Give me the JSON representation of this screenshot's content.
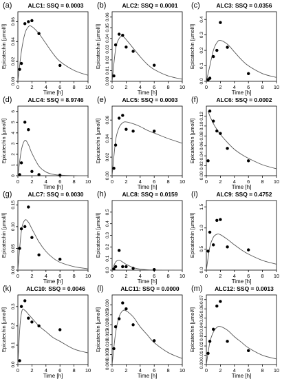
{
  "figure": {
    "xlabel": "Time [h]",
    "ylabel": "Epicatechin [µmol/l]"
  },
  "chart_data": [
    {
      "type": "scatter",
      "panel_label": "(a)",
      "title": "ALC1: SSQ = 0.0003",
      "xlabel": "Time [h]",
      "ylabel": "Epicatechin [µmol/l]",
      "xlim": [
        0,
        10
      ],
      "ylim": [
        0,
        0.07
      ],
      "xticks": [
        0,
        2,
        4,
        6,
        8,
        10
      ],
      "yticks": [
        0,
        0.02,
        0.04,
        0.06
      ],
      "ytick_labels": [
        "0.00",
        "0.02",
        "0.04",
        "0.06"
      ],
      "points": {
        "x": [
          0.25,
          0.5,
          1,
          1.5,
          2,
          3,
          6
        ],
        "y": [
          0.012,
          0.018,
          0.058,
          0.06,
          0.061,
          0.048,
          0.016
        ]
      },
      "curve": {
        "x": [
          0,
          0.5,
          1,
          1.5,
          2,
          3,
          4,
          5,
          6,
          8,
          10
        ],
        "y": [
          0,
          0.03,
          0.048,
          0.055,
          0.055,
          0.048,
          0.038,
          0.028,
          0.02,
          0.011,
          0.006
        ]
      }
    },
    {
      "type": "scatter",
      "panel_label": "(b)",
      "title": "ALC2: SSQ = 0.0001",
      "xlabel": "Time [h]",
      "ylabel": "Epicatechin [µmol/l]",
      "xlim": [
        0,
        10
      ],
      "ylim": [
        0,
        0.065
      ],
      "xticks": [
        0,
        2,
        4,
        6,
        8,
        10
      ],
      "yticks": [
        0,
        0.01,
        0.02,
        0.03,
        0.04,
        0.05,
        0.06
      ],
      "ytick_labels": [
        "0.00",
        "0.01",
        "0.02",
        "0.03",
        "0.04",
        "0.05",
        "0.06"
      ],
      "points": {
        "x": [
          0.25,
          0.5,
          1,
          1.5,
          2,
          3,
          6
        ],
        "y": [
          0.005,
          0.034,
          0.044,
          0.043,
          0.032,
          0.028,
          0.015
        ]
      },
      "curve": {
        "x": [
          0,
          0.5,
          1,
          1.5,
          2,
          3,
          4,
          5,
          6,
          8,
          10
        ],
        "y": [
          0,
          0.03,
          0.04,
          0.042,
          0.039,
          0.031,
          0.023,
          0.016,
          0.011,
          0.005,
          0.002
        ]
      }
    },
    {
      "type": "scatter",
      "panel_label": "(c)",
      "title": "ALC3: SSQ = 0.0356",
      "xlabel": "Time [h]",
      "ylabel": "Epicatechin [µmol/l]",
      "xlim": [
        0,
        10
      ],
      "ylim": [
        0,
        0.45
      ],
      "xticks": [
        0,
        2,
        4,
        6,
        8,
        10
      ],
      "yticks": [
        0,
        0.1,
        0.2,
        0.3,
        0.4
      ],
      "ytick_labels": [
        "0.0",
        "0.1",
        "0.2",
        "0.3",
        "0.4"
      ],
      "points": {
        "x": [
          0.25,
          0.5,
          1,
          1.5,
          2,
          3,
          6
        ],
        "y": [
          0.01,
          0.02,
          0.16,
          0.2,
          0.38,
          0.22,
          0.05
        ]
      },
      "curve": {
        "x": [
          0,
          0.5,
          1,
          1.5,
          2,
          3,
          4,
          5,
          6,
          8,
          10
        ],
        "y": [
          0,
          0.1,
          0.2,
          0.25,
          0.265,
          0.24,
          0.19,
          0.14,
          0.1,
          0.05,
          0.025
        ]
      }
    },
    {
      "type": "scatter",
      "panel_label": "(d)",
      "title": "ALC4: SSQ = 8.9746",
      "xlabel": "Time [h]",
      "ylabel": "Epicatechin [µmol/l]",
      "xlim": [
        0,
        10
      ],
      "ylim": [
        0,
        6.5
      ],
      "xticks": [
        0,
        2,
        4,
        6,
        8,
        10
      ],
      "yticks": [
        0,
        1,
        2,
        3,
        4,
        5,
        6
      ],
      "ytick_labels": [
        "0",
        "1",
        "2",
        "3",
        "4",
        "5",
        "6"
      ],
      "points": {
        "x": [
          0.25,
          0.5,
          1,
          1.5,
          2,
          3,
          6
        ],
        "y": [
          0.1,
          1.2,
          5.0,
          4.3,
          0.4,
          0.1,
          0.05
        ]
      },
      "curve": {
        "x": [
          0,
          0.5,
          1,
          1.5,
          2,
          3,
          4,
          5,
          6,
          8,
          10
        ],
        "y": [
          0,
          2.4,
          3.3,
          2.9,
          2.1,
          0.9,
          0.35,
          0.13,
          0.05,
          0.01,
          0
        ]
      }
    },
    {
      "type": "scatter",
      "panel_label": "(e)",
      "title": "ALC5: SSQ = 0.0003",
      "xlabel": "Time [h]",
      "ylabel": "Epicatechin [µmol/l]",
      "xlim": [
        0,
        10
      ],
      "ylim": [
        0,
        0.075
      ],
      "xticks": [
        0,
        2,
        4,
        6,
        8,
        10
      ],
      "yticks": [
        0,
        0.02,
        0.04,
        0.06
      ],
      "ytick_labels": [
        "0.00",
        "0.02",
        "0.04",
        "0.06"
      ],
      "points": {
        "x": [
          0.25,
          0.5,
          1,
          1.5,
          2,
          3,
          6
        ],
        "y": [
          0.008,
          0.033,
          0.062,
          0.065,
          0.05,
          0.048,
          0.048
        ]
      },
      "curve": {
        "x": [
          0,
          0.5,
          1,
          1.5,
          2,
          3,
          4,
          5,
          6,
          8,
          10
        ],
        "y": [
          0,
          0.038,
          0.052,
          0.057,
          0.058,
          0.056,
          0.053,
          0.049,
          0.046,
          0.04,
          0.035
        ]
      }
    },
    {
      "type": "scatter",
      "panel_label": "(f)",
      "title": "ALC6: SSQ = 0.0002",
      "xlabel": "Time [h]",
      "ylabel": "Epicatechin [µmol/l]",
      "xlim": [
        0,
        10
      ],
      "ylim": [
        0,
        0.14
      ],
      "xticks": [
        0,
        2,
        4,
        6,
        8,
        10
      ],
      "yticks": [
        0,
        0.02,
        0.04,
        0.06,
        0.08,
        0.1,
        0.12
      ],
      "ytick_labels": [
        "0.00",
        "0.02",
        "0.04",
        "0.06",
        "0.08",
        "0.10",
        "0.12"
      ],
      "points": {
        "x": [
          0.25,
          0.5,
          1,
          1.5,
          2,
          3,
          6
        ],
        "y": [
          0.03,
          0.13,
          0.11,
          0.09,
          0.085,
          0.055,
          0.03
        ]
      },
      "curve": {
        "x": [
          0.25,
          0.5,
          1,
          1.5,
          2,
          3,
          4,
          5,
          6,
          8,
          10
        ],
        "y": [
          0.13,
          0.12,
          0.105,
          0.093,
          0.083,
          0.067,
          0.053,
          0.043,
          0.035,
          0.022,
          0.014
        ]
      }
    },
    {
      "type": "scatter",
      "panel_label": "(g)",
      "title": "ALC7: SSQ = 0.0030",
      "xlabel": "Time [h]",
      "ylabel": "Epicatechin [µmol/l]",
      "xlim": [
        0,
        10
      ],
      "ylim": [
        0,
        0.16
      ],
      "xticks": [
        0,
        2,
        4,
        6,
        8,
        10
      ],
      "yticks": [
        0,
        0.05,
        0.1,
        0.15
      ],
      "ytick_labels": [
        "0.00",
        "0.05",
        "0.10",
        "0.15"
      ],
      "points": {
        "x": [
          0.25,
          0.5,
          1,
          1.5,
          2,
          3,
          6
        ],
        "y": [
          0.05,
          0.095,
          0.1,
          0.145,
          0.075,
          0.035,
          0.025
        ]
      },
      "curve": {
        "x": [
          0,
          0.5,
          1,
          1.5,
          2,
          3,
          4,
          5,
          6,
          8,
          10
        ],
        "y": [
          0,
          0.09,
          0.115,
          0.11,
          0.095,
          0.065,
          0.043,
          0.028,
          0.018,
          0.008,
          0.003
        ]
      }
    },
    {
      "type": "scatter",
      "panel_label": "(h)",
      "title": "ALC8: SSQ = 0.0159",
      "xlabel": "Time [h]",
      "ylabel": "Epicatechin [µmol/l]",
      "xlim": [
        0,
        10
      ],
      "ylim": [
        0,
        0.6
      ],
      "xticks": [
        0,
        2,
        4,
        6,
        8,
        10
      ],
      "yticks": [
        0,
        0.1,
        0.2,
        0.3,
        0.4,
        0.5
      ],
      "ytick_labels": [
        "0.0",
        "0.1",
        "0.2",
        "0.3",
        "0.4",
        "0.5"
      ],
      "points": {
        "x": [
          0.25,
          0.5,
          1,
          1.5,
          2,
          3,
          6
        ],
        "y": [
          0.01,
          0.03,
          0.17,
          0.03,
          0.03,
          0.015,
          0.005
        ]
      },
      "curve": {
        "x": [
          0,
          0.5,
          1,
          1.5,
          2,
          3,
          4,
          5,
          6,
          8,
          10
        ],
        "y": [
          0,
          0.07,
          0.085,
          0.07,
          0.05,
          0.022,
          0.009,
          0.003,
          0.001,
          0,
          0
        ]
      }
    },
    {
      "type": "scatter",
      "panel_label": "(i)",
      "title": "ALC9: SSQ = 0.4752",
      "xlabel": "Time [h]",
      "ylabel": "Epicatechin [µmol/l]",
      "xlim": [
        0,
        10
      ],
      "ylim": [
        0,
        1.65
      ],
      "xticks": [
        0,
        2,
        4,
        6,
        8,
        10
      ],
      "yticks": [
        0,
        0.5,
        1,
        1.5
      ],
      "ytick_labels": [
        "0.0",
        "0.5",
        "1.0",
        "1.5"
      ],
      "points": {
        "x": [
          0.25,
          0.5,
          1,
          1.5,
          2,
          3,
          6
        ],
        "y": [
          0.45,
          0.9,
          0.6,
          1.18,
          1.2,
          0.55,
          0.48
        ]
      },
      "curve": {
        "x": [
          0,
          0.5,
          1,
          1.5,
          2,
          3,
          4,
          5,
          6,
          8,
          10
        ],
        "y": [
          0,
          0.55,
          0.78,
          0.85,
          0.84,
          0.73,
          0.6,
          0.48,
          0.38,
          0.23,
          0.14
        ]
      }
    },
    {
      "type": "scatter",
      "panel_label": "(k)",
      "title": "ALC10: SSQ = 0.0046",
      "xlabel": "Time [h]",
      "ylabel": "Epicatechin [µmol/l]",
      "xlim": [
        0,
        10
      ],
      "ylim": [
        0,
        0.36
      ],
      "xticks": [
        0,
        2,
        4,
        6,
        8,
        10
      ],
      "yticks": [
        0,
        0.1,
        0.2,
        0.3
      ],
      "ytick_labels": [
        "0.0",
        "0.1",
        "0.2",
        "0.3"
      ],
      "points": {
        "x": [
          0.25,
          0.5,
          1,
          1.5,
          2,
          3,
          6
        ],
        "y": [
          0.02,
          0.3,
          0.33,
          0.24,
          0.22,
          0.2,
          0.18
        ]
      },
      "curve": {
        "x": [
          0,
          0.3,
          0.6,
          1,
          1.5,
          2,
          3,
          4,
          5,
          6,
          8,
          10
        ],
        "y": [
          0,
          0.2,
          0.28,
          0.28,
          0.26,
          0.24,
          0.2,
          0.17,
          0.14,
          0.12,
          0.08,
          0.06
        ]
      }
    },
    {
      "type": "scatter",
      "panel_label": "(l)",
      "title": "ALC11: SSQ = 0.0000",
      "xlabel": "Time [h]",
      "ylabel": "Epicatechin [µmol/l]",
      "xlim": [
        0,
        10
      ],
      "ylim": [
        0,
        0.035
      ],
      "xticks": [
        0,
        2,
        4,
        6,
        8,
        10
      ],
      "yticks": [
        0,
        0.005,
        0.01,
        0.015,
        0.02,
        0.025,
        0.03
      ],
      "ytick_labels": [
        "0.000",
        "0.005",
        "0.010",
        "0.015",
        "0.020",
        "0.025",
        "0.030"
      ],
      "points": {
        "x": [
          0.25,
          0.5,
          1,
          1.5,
          2,
          3,
          6
        ],
        "y": [
          0.008,
          0.019,
          0.023,
          0.031,
          0.028,
          0.02,
          0.012
        ]
      },
      "curve": {
        "x": [
          0,
          0.5,
          1,
          1.5,
          2,
          3,
          4,
          5,
          6,
          8,
          10
        ],
        "y": [
          0,
          0.016,
          0.024,
          0.027,
          0.027,
          0.024,
          0.019,
          0.015,
          0.011,
          0.006,
          0.003
        ]
      }
    },
    {
      "type": "scatter",
      "panel_label": "(m)",
      "title": "ALC12: SSQ = 0.0013",
      "xlabel": "Time [h]",
      "ylabel": "Epicatechin [µmol/l]",
      "xlim": [
        0,
        10
      ],
      "ylim": [
        0,
        0.075
      ],
      "xticks": [
        0,
        2,
        4,
        6,
        8,
        10
      ],
      "yticks": [
        0,
        0.01,
        0.02,
        0.03,
        0.04,
        0.05,
        0.06,
        0.07
      ],
      "ytick_labels": [
        "0.00",
        "0.01",
        "0.02",
        "0.03",
        "0.04",
        "0.05",
        "0.06",
        "0.07"
      ],
      "points": {
        "x": [
          0.25,
          0.5,
          1,
          1.5,
          2,
          3,
          6
        ],
        "y": [
          0.012,
          0.025,
          0.038,
          0.063,
          0.068,
          0.025,
          0.015
        ]
      },
      "curve": {
        "x": [
          0,
          0.5,
          1,
          1.5,
          2,
          3,
          4,
          5,
          6,
          8,
          10
        ],
        "y": [
          0,
          0.024,
          0.035,
          0.04,
          0.041,
          0.037,
          0.03,
          0.024,
          0.018,
          0.01,
          0.006
        ]
      }
    }
  ]
}
